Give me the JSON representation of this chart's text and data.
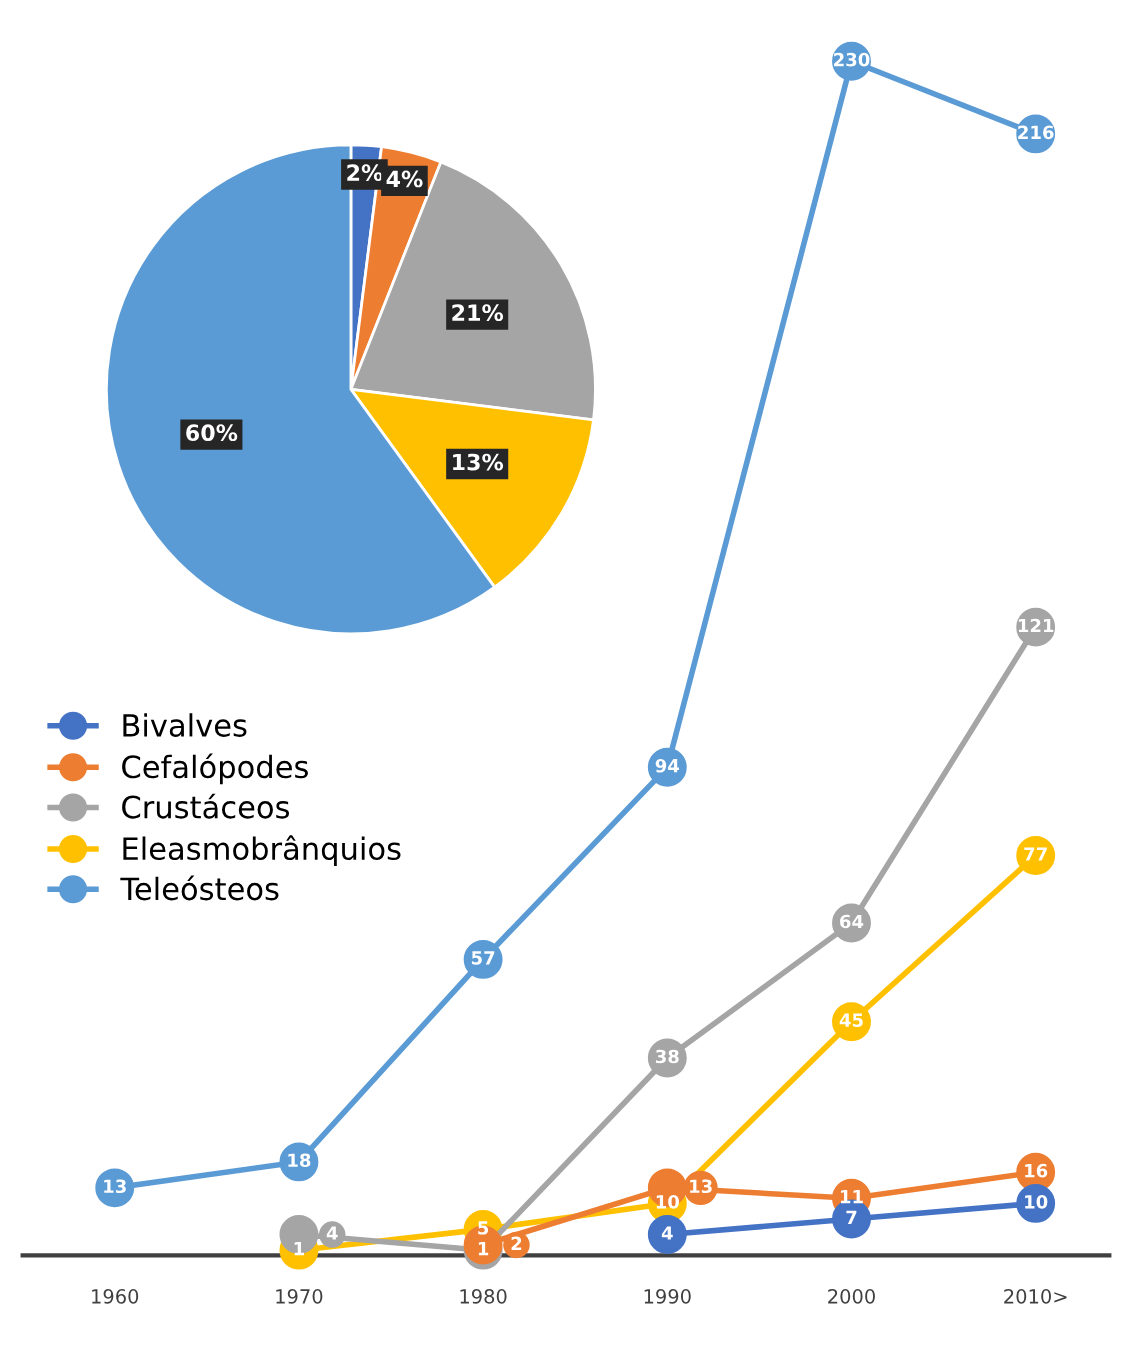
{
  "chart_data": [
    {
      "type": "pie",
      "categories": [
        null,
        null,
        null,
        null,
        null
      ],
      "values": [
        2,
        4,
        21,
        13,
        60
      ],
      "colors": [
        "#4472c4",
        "#ed7d31",
        "#a5a5a5",
        "#ffc000",
        "#5b9bd5"
      ],
      "value_labels": [
        "2%",
        "4%",
        "21%",
        "13%",
        "60%"
      ]
    },
    {
      "type": "line",
      "categories": [
        "1960",
        "1970",
        "1980",
        "1990",
        "2000",
        "2010>"
      ],
      "marker": "circle",
      "line_style": "solid",
      "data_labels": true,
      "legend": "left",
      "grid": false,
      "tick_labels": "x",
      "series": [
        {
          "name": "Bivalves",
          "color": "#4472c4",
          "values": [
            null,
            null,
            null,
            4,
            7,
            10
          ]
        },
        {
          "name": "Cefalópodes",
          "color": "#ed7d31",
          "values": [
            null,
            null,
            2,
            13,
            11,
            16
          ]
        },
        {
          "name": "Crustáceos",
          "color": "#a5a5a5",
          "values": [
            null,
            4,
            1,
            38,
            64,
            121
          ]
        },
        {
          "name": "Eleasmobrânquios",
          "color": "#ffc000",
          "values": [
            null,
            1,
            5,
            10,
            45,
            77
          ]
        },
        {
          "name": "Teleósteos",
          "color": "#5b9bd5",
          "values": [
            13,
            18,
            57,
            94,
            230,
            216
          ]
        }
      ]
    }
  ]
}
